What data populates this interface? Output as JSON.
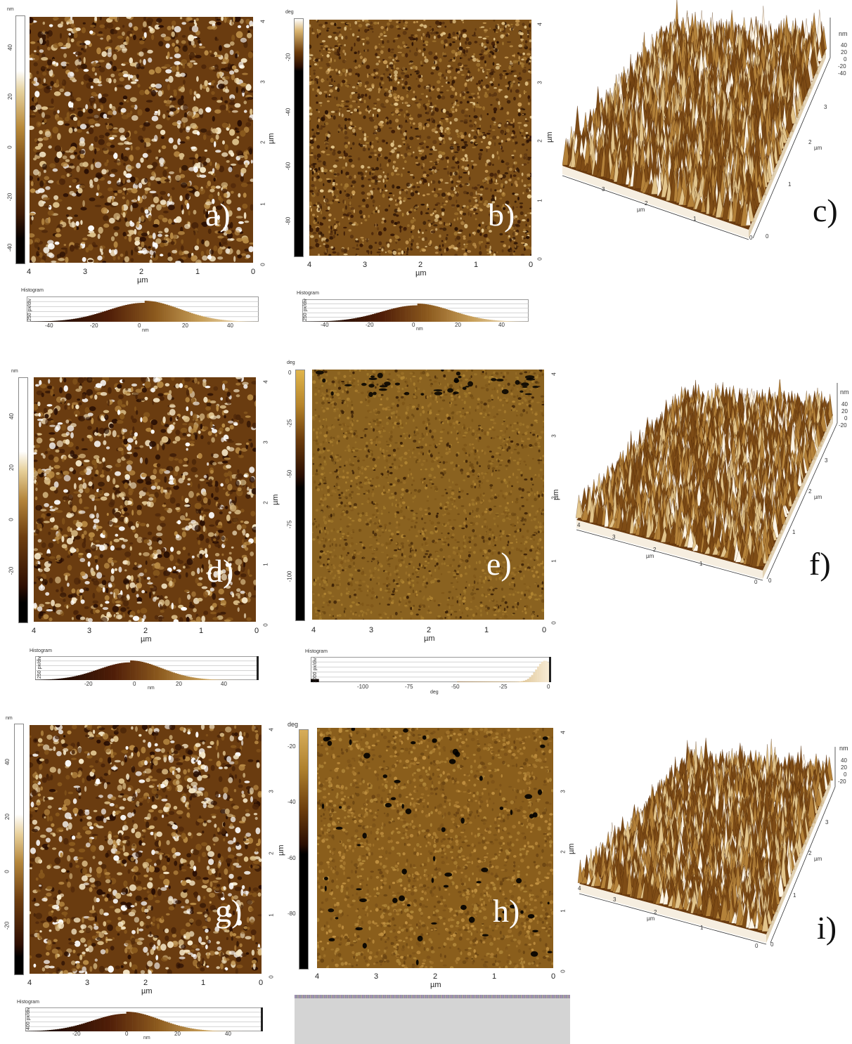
{
  "panels": {
    "a": {
      "label": "a)",
      "kind": "height",
      "cbar_unit": "nm",
      "cbar_ticks": [
        "40",
        "20",
        "0",
        "-20",
        "-40"
      ],
      "x_ticks": [
        "4",
        "3",
        "2",
        "1",
        "0"
      ],
      "y_ticks": [
        "4",
        "3",
        "2",
        "1",
        "0"
      ],
      "axis_unit": "µm",
      "hist_title": "Histogram",
      "hist_ylabel": "250 px/div",
      "hist_ticks": [
        "-40",
        "-20",
        "0",
        "20",
        "40"
      ],
      "hist_unit": "nm"
    },
    "b": {
      "label": "b)",
      "kind": "phase",
      "cbar_unit": "deg",
      "cbar_ticks": [
        "-20",
        "-40",
        "-60",
        "-80"
      ],
      "x_ticks": [
        "4",
        "3",
        "2",
        "1",
        "0"
      ],
      "y_ticks": [
        "4",
        "3",
        "2",
        "1",
        "0"
      ],
      "axis_unit": "µm",
      "hist_title": "Histogram",
      "hist_ylabel": "250 px/div",
      "hist_ticks": [
        "-40",
        "-20",
        "0",
        "20",
        "40"
      ],
      "hist_unit": "nm"
    },
    "c": {
      "label": "c)",
      "kind": "3d",
      "z_unit": "nm",
      "z_ticks": [
        "40",
        "20",
        "0",
        "-20",
        "-40"
      ],
      "front_ticks": [
        "3",
        "2",
        "1",
        "0"
      ],
      "side_ticks": [
        "3",
        "2",
        "1",
        "0"
      ],
      "axis_unit": "µm"
    },
    "d": {
      "label": "d)",
      "kind": "height",
      "cbar_unit": "nm",
      "cbar_ticks": [
        "40",
        "20",
        "0",
        "-20"
      ],
      "x_ticks": [
        "4",
        "3",
        "2",
        "1",
        "0"
      ],
      "y_ticks": [
        "4",
        "3",
        "2",
        "1",
        "0"
      ],
      "axis_unit": "µm",
      "hist_title": "Histogram",
      "hist_ylabel": "250 px/div",
      "hist_ticks": [
        "-20",
        "0",
        "20",
        "40"
      ],
      "hist_unit": "nm"
    },
    "e": {
      "label": "e)",
      "kind": "phase",
      "cbar_unit": "deg",
      "cbar_ticks": [
        "0",
        "-25",
        "-50",
        "-75",
        "-100"
      ],
      "x_ticks": [
        "4",
        "3",
        "2",
        "1",
        "0"
      ],
      "y_ticks": [
        "4",
        "3",
        "2",
        "1",
        "0"
      ],
      "axis_unit": "µm",
      "hist_title": "Histogram",
      "hist_ylabel": "1000 px/div",
      "hist_ticks": [
        "-100",
        "-75",
        "-50",
        "-25",
        "0"
      ],
      "hist_unit": "deg"
    },
    "f": {
      "label": "f)",
      "kind": "3d",
      "z_unit": "nm",
      "z_ticks": [
        "40",
        "20",
        "0",
        "-20"
      ],
      "front_ticks": [
        "4",
        "3",
        "2",
        "1",
        "0"
      ],
      "side_ticks": [
        "3",
        "2",
        "1",
        "0"
      ],
      "axis_unit": "µm"
    },
    "g": {
      "label": "g)",
      "kind": "height",
      "cbar_unit": "nm",
      "cbar_ticks": [
        "40",
        "20",
        "0",
        "-20"
      ],
      "x_ticks": [
        "4",
        "3",
        "2",
        "1",
        "0"
      ],
      "y_ticks": [
        "4",
        "3",
        "2",
        "1",
        "0"
      ],
      "axis_unit": "µm",
      "hist_title": "Histogram",
      "hist_ylabel": "400 px/div",
      "hist_ticks": [
        "-20",
        "0",
        "20",
        "40"
      ],
      "hist_unit": "nm"
    },
    "h": {
      "label": "h)",
      "kind": "phase",
      "cbar_unit": "deg",
      "cbar_ticks": [
        "-20",
        "-40",
        "-60",
        "-80"
      ],
      "x_ticks": [
        "4",
        "3",
        "2",
        "1",
        "0"
      ],
      "y_ticks": [
        "4",
        "3",
        "2",
        "1",
        "0"
      ],
      "axis_unit": "µm"
    },
    "i": {
      "label": "i)",
      "kind": "3d",
      "z_unit": "nm",
      "z_ticks": [
        "40",
        "20",
        "0",
        "-20"
      ],
      "front_ticks": [
        "4",
        "3",
        "2",
        "1",
        "0"
      ],
      "side_ticks": [
        "3",
        "2",
        "1",
        "0"
      ],
      "axis_unit": "µm"
    }
  },
  "colors": {
    "afm_dark": "#1a0a02",
    "afm_mid": "#8a5a1a",
    "afm_light": "#f5e6c8",
    "phase_mid": "#9a7020"
  }
}
